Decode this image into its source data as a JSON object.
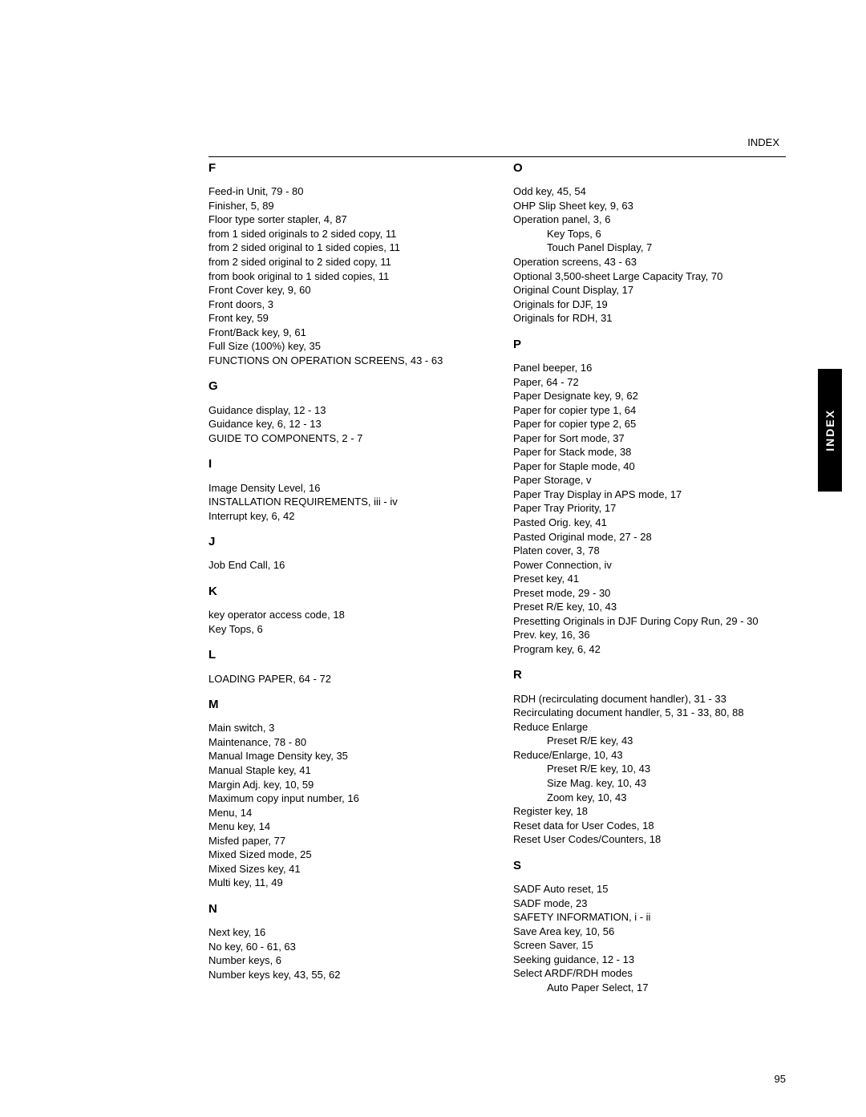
{
  "header": "INDEX",
  "tab": "INDEX",
  "page_number": "95",
  "left": {
    "F": {
      "letter": "F",
      "entries": [
        "Feed-in Unit, 79 - 80",
        "Finisher, 5, 89",
        "Floor type sorter stapler, 4, 87",
        "from 1 sided originals to 2 sided copy, 11",
        "from 2 sided original to 1 sided copies, 11",
        "from 2 sided original to 2 sided copy, 11",
        "from book original to 1 sided copies, 11",
        "Front Cover key, 9, 60",
        "Front doors, 3",
        "Front key, 59",
        "Front/Back key, 9, 61",
        "Full Size (100%) key, 35",
        "FUNCTIONS ON OPERATION SCREENS, 43 - 63"
      ]
    },
    "G": {
      "letter": "G",
      "entries": [
        "Guidance display, 12 - 13",
        "Guidance key, 6, 12 - 13",
        "GUIDE TO COMPONENTS, 2 - 7"
      ]
    },
    "I": {
      "letter": "I",
      "entries": [
        "Image Density Level, 16",
        "INSTALLATION REQUIREMENTS, iii - iv",
        "Interrupt key, 6, 42"
      ]
    },
    "J": {
      "letter": "J",
      "entries": [
        "Job End Call, 16"
      ]
    },
    "K": {
      "letter": "K",
      "entries": [
        "key operator access code, 18",
        "Key Tops, 6"
      ]
    },
    "L": {
      "letter": "L",
      "entries": [
        "LOADING PAPER, 64 - 72"
      ]
    },
    "M": {
      "letter": "M",
      "entries": [
        "Main switch, 3",
        "Maintenance, 78 - 80",
        "Manual Image Density key, 35",
        "Manual Staple key, 41",
        "Margin Adj. key, 10, 59",
        "Maximum copy input number, 16",
        "Menu, 14",
        "Menu key, 14",
        "Misfed paper, 77",
        "Mixed Sized mode, 25",
        "Mixed Sizes key, 41",
        "Multi key, 11, 49"
      ]
    },
    "N": {
      "letter": "N",
      "entries": [
        "Next key, 16",
        "No key, 60 - 61, 63",
        "Number keys, 6",
        "Number keys key, 43, 55, 62"
      ]
    }
  },
  "right": {
    "O": {
      "letter": "O",
      "entries": [
        {
          "t": "Odd key, 45, 54"
        },
        {
          "t": "OHP Slip Sheet key, 9, 63"
        },
        {
          "t": "Operation panel, 3, 6"
        },
        {
          "t": "Key Tops, 6",
          "i": 1
        },
        {
          "t": "Touch Panel Display, 7",
          "i": 1
        },
        {
          "t": "Operation screens, 43 - 63"
        },
        {
          "t": "Optional 3,500-sheet Large Capacity Tray, 70"
        },
        {
          "t": "Original Count Display, 17"
        },
        {
          "t": "Originals for DJF, 19"
        },
        {
          "t": "Originals for RDH, 31"
        }
      ]
    },
    "P": {
      "letter": "P",
      "entries": [
        {
          "t": "Panel beeper, 16"
        },
        {
          "t": "Paper, 64 - 72"
        },
        {
          "t": "Paper Designate key, 9, 62"
        },
        {
          "t": "Paper for copier type 1, 64"
        },
        {
          "t": "Paper for copier type 2, 65"
        },
        {
          "t": "Paper for Sort mode, 37"
        },
        {
          "t": "Paper for Stack mode, 38"
        },
        {
          "t": "Paper for Staple mode, 40"
        },
        {
          "t": "Paper Storage, v"
        },
        {
          "t": "Paper Tray Display in APS mode, 17"
        },
        {
          "t": "Paper Tray Priority, 17"
        },
        {
          "t": "Pasted Orig. key, 41"
        },
        {
          "t": "Pasted Original mode, 27 - 28"
        },
        {
          "t": "Platen cover, 3, 78"
        },
        {
          "t": "Power Connection, iv"
        },
        {
          "t": "Preset key, 41"
        },
        {
          "t": "Preset mode, 29 - 30"
        },
        {
          "t": "Preset R/E key, 10, 43"
        },
        {
          "t": "Presetting Originals in DJF During Copy Run, 29 - 30"
        },
        {
          "t": "Prev. key, 16, 36"
        },
        {
          "t": "Program key, 6, 42"
        }
      ]
    },
    "R": {
      "letter": "R",
      "entries": [
        {
          "t": "RDH (recirculating document handler), 31 - 33"
        },
        {
          "t": "Recirculating document handler, 5, 31 - 33, 80, 88"
        },
        {
          "t": "Reduce Enlarge"
        },
        {
          "t": "Preset R/E key, 43",
          "i": 1
        },
        {
          "t": "Reduce/Enlarge, 10, 43"
        },
        {
          "t": "Preset R/E key, 10, 43",
          "i": 1
        },
        {
          "t": "Size Mag. key, 10, 43",
          "i": 1
        },
        {
          "t": "Zoom key, 10, 43",
          "i": 1
        },
        {
          "t": "Register key, 18"
        },
        {
          "t": "Reset data for User Codes, 18"
        },
        {
          "t": "Reset User Codes/Counters, 18"
        }
      ]
    },
    "S": {
      "letter": "S",
      "entries": [
        {
          "t": "SADF Auto reset, 15"
        },
        {
          "t": "SADF mode, 23"
        },
        {
          "t": "SAFETY INFORMATION, i - ii"
        },
        {
          "t": "Save Area key, 10, 56"
        },
        {
          "t": "Screen Saver, 15"
        },
        {
          "t": "Seeking guidance, 12 - 13"
        },
        {
          "t": "Select ARDF/RDH modes"
        },
        {
          "t": "Auto Paper Select, 17",
          "i": 1
        }
      ]
    }
  }
}
